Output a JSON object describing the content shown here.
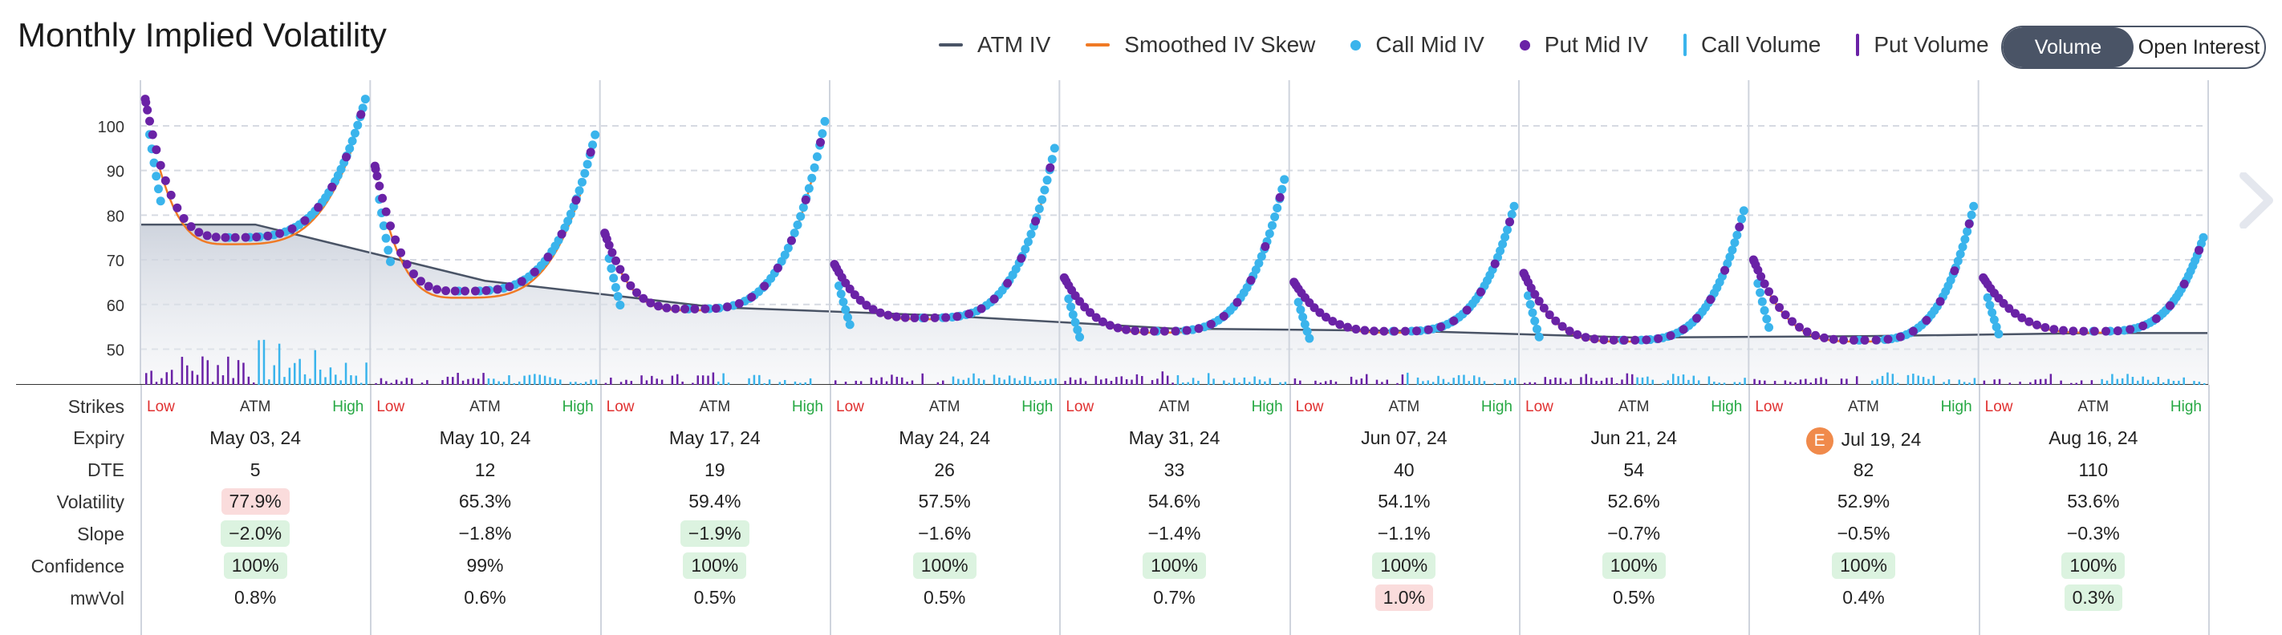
{
  "header": {
    "title": "Monthly Implied Volatility"
  },
  "legend": [
    {
      "label": "ATM IV",
      "kind": "line",
      "color": "#4a5466"
    },
    {
      "label": "Smoothed IV Skew",
      "kind": "line",
      "color": "#f07a25"
    },
    {
      "label": "Call Mid IV",
      "kind": "dot",
      "color": "#3ab4ec"
    },
    {
      "label": "Put Mid IV",
      "kind": "dot",
      "color": "#6a22a6"
    },
    {
      "label": "Call Volume",
      "kind": "bar",
      "color": "#3ab4ec"
    },
    {
      "label": "Put Volume",
      "kind": "bar",
      "color": "#6a22a6"
    }
  ],
  "toggle": {
    "volume_label": "Volume",
    "oi_label": "Open Interest",
    "active": "volume"
  },
  "table": {
    "row_labels": {
      "strikes": "Strikes",
      "expiry": "Expiry",
      "dte": "DTE",
      "volatility": "Volatility",
      "slope": "Slope",
      "confidence": "Confidence",
      "mwvol": "mwVol"
    },
    "strike_labels": {
      "low": "Low",
      "atm": "ATM",
      "high": "High"
    }
  },
  "chart_data": {
    "type": "line",
    "y_ticks": [
      50,
      60,
      70,
      80,
      90,
      100
    ],
    "ylim": [
      42,
      107
    ],
    "grid": true,
    "colors": {
      "atm": "#4a5466",
      "skew": "#f07a25",
      "call": "#3ab4ec",
      "put": "#6a22a6"
    },
    "expiries": [
      {
        "expiry": "May 03, 24",
        "dte": "5",
        "volatility": "77.9%",
        "vol_hl": "red",
        "slope": "−2.0%",
        "slope_hl": "green",
        "confidence": "100%",
        "conf_hl": "green",
        "mwvol": "0.8%",
        "mwvol_hl": "",
        "earnings": "",
        "atm_iv": 77.9,
        "min_iv": 75,
        "left_iv": 106,
        "right_iv": 106,
        "min_pos": 0.38
      },
      {
        "expiry": "May 10, 24",
        "dte": "12",
        "volatility": "65.3%",
        "vol_hl": "",
        "slope": "−1.8%",
        "slope_hl": "",
        "confidence": "99%",
        "conf_hl": "",
        "mwvol": "0.6%",
        "mwvol_hl": "",
        "earnings": "",
        "atm_iv": 65.3,
        "min_iv": 63,
        "left_iv": 91,
        "right_iv": 98,
        "min_pos": 0.38
      },
      {
        "expiry": "May 17, 24",
        "dte": "19",
        "volatility": "59.4%",
        "vol_hl": "",
        "slope": "−1.9%",
        "slope_hl": "green",
        "confidence": "100%",
        "conf_hl": "green",
        "mwvol": "0.5%",
        "mwvol_hl": "",
        "earnings": "",
        "atm_iv": 59.4,
        "min_iv": 59,
        "left_iv": 76,
        "right_iv": 101,
        "min_pos": 0.38
      },
      {
        "expiry": "May 24, 24",
        "dte": "26",
        "volatility": "57.5%",
        "vol_hl": "",
        "slope": "−1.6%",
        "slope_hl": "",
        "confidence": "100%",
        "conf_hl": "green",
        "mwvol": "0.5%",
        "mwvol_hl": "",
        "earnings": "",
        "atm_iv": 57.5,
        "min_iv": 57,
        "left_iv": 69,
        "right_iv": 95,
        "min_pos": 0.4
      },
      {
        "expiry": "May 31, 24",
        "dte": "33",
        "volatility": "54.6%",
        "vol_hl": "",
        "slope": "−1.4%",
        "slope_hl": "",
        "confidence": "100%",
        "conf_hl": "green",
        "mwvol": "0.7%",
        "mwvol_hl": "",
        "earnings": "",
        "atm_iv": 54.6,
        "min_iv": 54,
        "left_iv": 66,
        "right_iv": 88,
        "min_pos": 0.42
      },
      {
        "expiry": "Jun 07, 24",
        "dte": "40",
        "volatility": "54.1%",
        "vol_hl": "",
        "slope": "−1.1%",
        "slope_hl": "",
        "confidence": "100%",
        "conf_hl": "green",
        "mwvol": "1.0%",
        "mwvol_hl": "red",
        "earnings": "",
        "atm_iv": 54.1,
        "min_iv": 54,
        "left_iv": 65,
        "right_iv": 82,
        "min_pos": 0.45
      },
      {
        "expiry": "Jun 21, 24",
        "dte": "54",
        "volatility": "52.6%",
        "vol_hl": "",
        "slope": "−0.7%",
        "slope_hl": "",
        "confidence": "100%",
        "conf_hl": "green",
        "mwvol": "0.5%",
        "mwvol_hl": "",
        "earnings": "",
        "atm_iv": 52.6,
        "min_iv": 52,
        "left_iv": 67,
        "right_iv": 81,
        "min_pos": 0.45
      },
      {
        "expiry": "Jul 19, 24",
        "dte": "82",
        "volatility": "52.9%",
        "vol_hl": "",
        "slope": "−0.5%",
        "slope_hl": "",
        "confidence": "100%",
        "conf_hl": "green",
        "mwvol": "0.4%",
        "mwvol_hl": "",
        "earnings": "E",
        "atm_iv": 52.9,
        "min_iv": 52,
        "left_iv": 70,
        "right_iv": 82,
        "min_pos": 0.48
      },
      {
        "expiry": "Aug 16, 24",
        "dte": "110",
        "volatility": "53.6%",
        "vol_hl": "",
        "slope": "−0.3%",
        "slope_hl": "",
        "confidence": "100%",
        "conf_hl": "green",
        "mwvol": "0.3%",
        "mwvol_hl": "green",
        "earnings": "",
        "atm_iv": 53.6,
        "min_iv": 54,
        "left_iv": 66,
        "right_iv": 75,
        "min_pos": 0.5
      }
    ]
  }
}
